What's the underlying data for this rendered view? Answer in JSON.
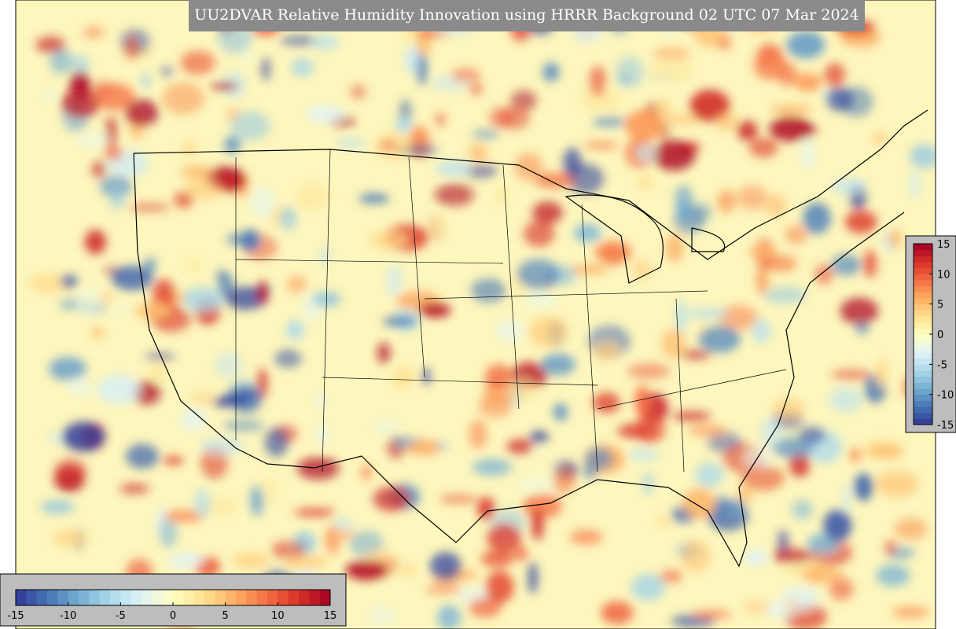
{
  "title": "UU2DVAR Relative Humidity Innovation using HRRR Background 02 UTC 07 Mar 2024",
  "colormap": [
    "#313695",
    "#4575b4",
    "#74add1",
    "#abd9e9",
    "#e0f3f8",
    "#ffffbf",
    "#fee090",
    "#fdae61",
    "#f46d43",
    "#d73027",
    "#a50026"
  ],
  "colorbar_horizontal": {
    "range": [
      -15,
      15
    ],
    "ticks": [
      -15,
      -10,
      -5,
      0,
      5,
      10,
      15
    ]
  },
  "colorbar_vertical": {
    "range": [
      -15,
      15
    ],
    "ticks": [
      15,
      10,
      5,
      0,
      -5,
      -10,
      -15
    ]
  }
}
